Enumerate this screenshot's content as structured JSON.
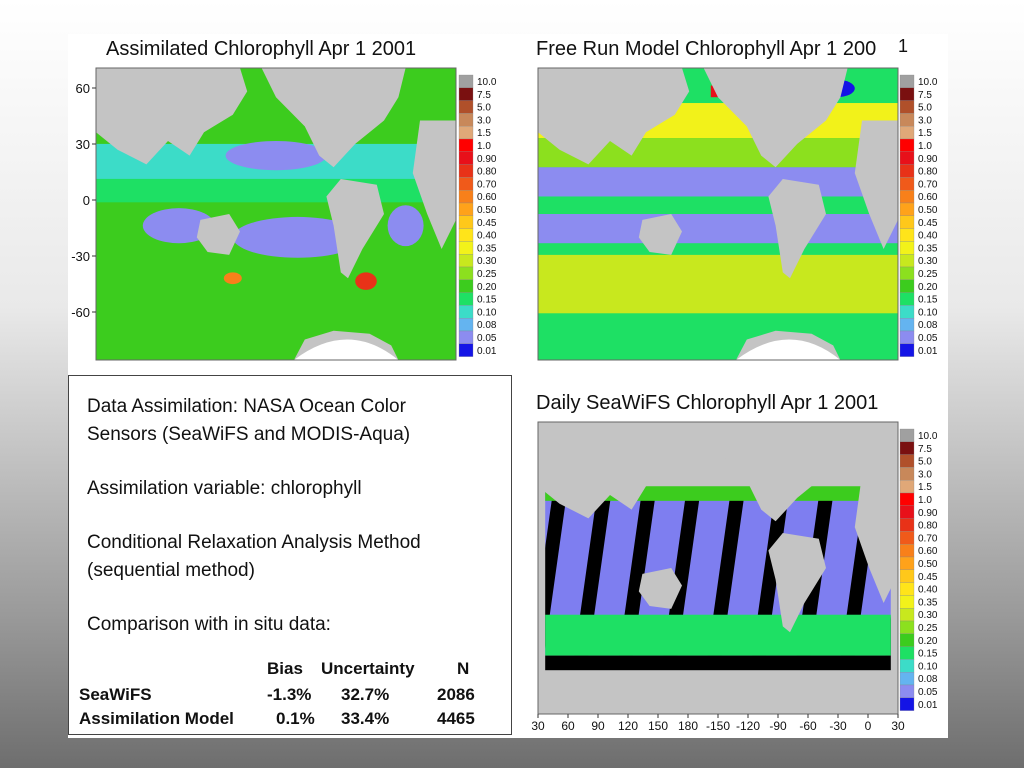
{
  "maps": [
    {
      "id": "assimilated",
      "title": "Assimilated Chlorophyll Apr 1 2001"
    },
    {
      "id": "free_run",
      "title": "Free Run Model Chlorophyll Apr 1 200"
    },
    {
      "id": "seawifs",
      "title": "Daily SeaWiFS Chlorophyll Apr 1 2001"
    }
  ],
  "page_number": "1",
  "lat_ticks": [
    "60",
    "30",
    "0",
    "-30",
    "-60"
  ],
  "lon_ticks": [
    "30",
    "60",
    "90",
    "120",
    "150",
    "180",
    "-150",
    "-120",
    "-90",
    "-60",
    "-30",
    "0",
    "30"
  ],
  "colorbar": {
    "labels": [
      "10.0",
      "7.5",
      "5.0",
      "3.0",
      "1.5",
      "1.0",
      "0.90",
      "0.80",
      "0.70",
      "0.60",
      "0.50",
      "0.45",
      "0.40",
      "0.35",
      "0.30",
      "0.25",
      "0.20",
      "0.15",
      "0.10",
      "0.08",
      "0.05",
      "0.01"
    ],
    "colors": [
      "#a0a0a0",
      "#7a1010",
      "#b0502a",
      "#c8885a",
      "#e0a878",
      "#ff0000",
      "#e8101a",
      "#e83218",
      "#f05a1a",
      "#f8801a",
      "#ffa21a",
      "#ffc81a",
      "#ffe41a",
      "#f2f21a",
      "#c8e81e",
      "#8ce01e",
      "#3ccc1e",
      "#1ee064",
      "#3cdcc8",
      "#64b4f0",
      "#8c8cf0",
      "#1414e6"
    ]
  },
  "info": {
    "lines": [
      "Data Assimilation:  NASA Ocean Color",
      "Sensors (SeaWiFS and MODIS-Aqua)",
      "Assimilation variable: chlorophyll",
      "Conditional Relaxation Analysis Method",
      "(sequential method)",
      "Comparison with in situ data:"
    ],
    "table": {
      "headers": [
        "Bias",
        "Uncertainty",
        "N"
      ],
      "rows": [
        {
          "label": "SeaWiFS",
          "bias": "-1.3%",
          "uncertainty": "32.7%",
          "n": "2086"
        },
        {
          "label": "Assimilation Model",
          "bias": "0.1%",
          "uncertainty": "33.4%",
          "n": "4465"
        }
      ]
    }
  },
  "colors": {
    "land": "#c4c4c4",
    "no_data": "#000000",
    "sea_ice": "#ffffff"
  }
}
